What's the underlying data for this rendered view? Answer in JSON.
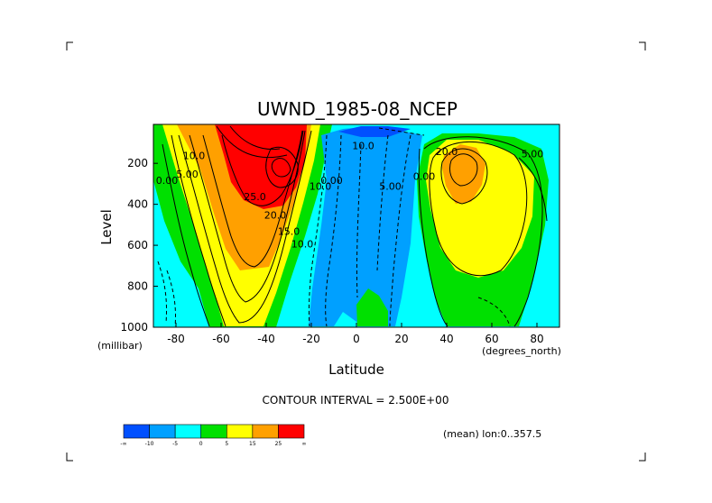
{
  "chart_data": {
    "type": "contour",
    "title": "UWND_1985-08_NCEP",
    "xlabel": "Latitude",
    "ylabel": "Level",
    "x_units": "(degrees_north)",
    "y_units": "(millibar)",
    "xlim": [
      -90,
      90
    ],
    "ylim": [
      1000,
      10
    ],
    "y_reversed": true,
    "x_ticks": [
      -80,
      -60,
      -40,
      -20,
      0,
      20,
      40,
      60,
      80
    ],
    "y_ticks": [
      200,
      400,
      600,
      800,
      1000
    ],
    "contour_interval_text": "CONTOUR INTERVAL = 2.500E+00",
    "mean_text": "(mean) lon:0..357.5",
    "contour_labels": [
      {
        "text": "0.00",
        "x": -84,
        "y": 300
      },
      {
        "text": "5.00",
        "x": -75,
        "y": 270
      },
      {
        "text": "10.0",
        "x": -72,
        "y": 180
      },
      {
        "text": "25.0",
        "x": -45,
        "y": 380
      },
      {
        "text": "20.0",
        "x": -36,
        "y": 470
      },
      {
        "text": "15.0",
        "x": -30,
        "y": 550
      },
      {
        "text": "10.0",
        "x": -24,
        "y": 610
      },
      {
        "text": "10.0",
        "x": -16,
        "y": 330
      },
      {
        "text": "0.00",
        "x": -11,
        "y": 300
      },
      {
        "text": "10.0",
        "x": 3,
        "y": 130
      },
      {
        "text": "5.00",
        "x": 15,
        "y": 330
      },
      {
        "text": "0.00",
        "x": 30,
        "y": 280
      },
      {
        "text": "20.0",
        "x": 40,
        "y": 160
      },
      {
        "text": "5.00",
        "x": 78,
        "y": 170
      }
    ],
    "colorbar": {
      "colors": [
        "#0050ff",
        "#00a0ff",
        "#00ffff",
        "#00e000",
        "#ffff00",
        "#ffa000",
        "#ff0000"
      ],
      "labels": [
        "-∞",
        "-10",
        "-5",
        "0",
        "5",
        "15",
        "25",
        "∞"
      ]
    }
  }
}
